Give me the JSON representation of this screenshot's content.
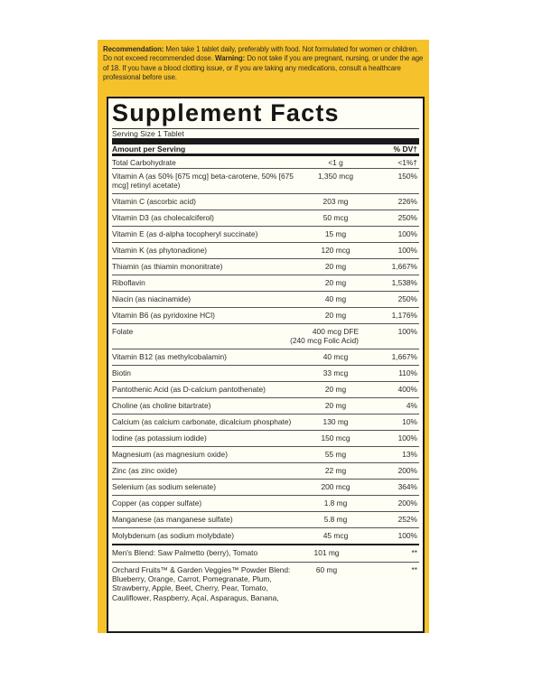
{
  "recommendation": {
    "label1": "Recommendation:",
    "text1": " Men take 1 tablet daily, preferably with food. Not formulated for women or children. Do not exceed recommended dose. ",
    "label2": "Warning:",
    "text2": " Do not take if you are pregnant, nursing, or under the age of 18. If you have a blood clotting issue, or if you are taking any medications, consult a healthcare professional before use."
  },
  "facts": {
    "title": "Supplement Facts",
    "serving_size": "Serving Size 1 Tablet",
    "header_amount": "Amount per Serving",
    "header_dv": "% DV†",
    "rows": [
      {
        "name": "Total Carbohydrate",
        "amount": "<1 g",
        "dv": "<1%†"
      },
      {
        "name": "Vitamin A (as 50% [675 mcg] beta-carotene, 50% [675 mcg] retinyl acetate)",
        "amount": "1,350 mcg",
        "dv": "150%"
      },
      {
        "name": "Vitamin C (ascorbic acid)",
        "amount": "203 mg",
        "dv": "226%"
      },
      {
        "name": "Vitamin D3 (as cholecalciferol)",
        "amount": "50 mcg",
        "dv": "250%"
      },
      {
        "name": "Vitamin E (as d-alpha tocopheryl succinate)",
        "amount": "15 mg",
        "dv": "100%"
      },
      {
        "name": "Vitamin K (as phytonadione)",
        "amount": "120 mcg",
        "dv": "100%"
      },
      {
        "name": "Thiamin (as thiamin mononitrate)",
        "amount": "20 mg",
        "dv": "1,667%"
      },
      {
        "name": "Riboflavin",
        "amount": "20 mg",
        "dv": "1,538%"
      },
      {
        "name": "Niacin (as niacinamide)",
        "amount": "40 mg",
        "dv": "250%"
      },
      {
        "name": "Vitamin B6 (as pyridoxine HCl)",
        "amount": "20 mg",
        "dv": "1,176%"
      },
      {
        "name": "Folate",
        "amount": "400 mcg DFE",
        "amount2": "(240 mcg Folic Acid)",
        "dv": "100%"
      },
      {
        "name": "Vitamin B12 (as methylcobalamin)",
        "amount": "40 mcg",
        "dv": "1,667%"
      },
      {
        "name": "Biotin",
        "amount": "33 mcg",
        "dv": "110%"
      },
      {
        "name": "Pantothenic Acid (as D-calcium pantothenate)",
        "amount": "20 mg",
        "dv": "400%"
      },
      {
        "name": "Choline (as choline bitartrate)",
        "amount": "20 mg",
        "dv": "4%"
      },
      {
        "name": "Calcium (as calcium carbonate, dicalcium phosphate)",
        "amount": "130 mg",
        "dv": "10%"
      },
      {
        "name": "Iodine (as potassium iodide)",
        "amount": "150 mcg",
        "dv": "100%"
      },
      {
        "name": "Magnesium (as magnesium oxide)",
        "amount": "55 mg",
        "dv": "13%"
      },
      {
        "name": "Zinc (as zinc oxide)",
        "amount": "22 mg",
        "dv": "200%"
      },
      {
        "name": "Selenium (as sodium selenate)",
        "amount": "200 mcg",
        "dv": "364%"
      },
      {
        "name": "Copper (as copper sulfate)",
        "amount": "1.8 mg",
        "dv": "200%"
      },
      {
        "name": "Manganese (as manganese sulfate)",
        "amount": "5.8 mg",
        "dv": "252%"
      },
      {
        "name": "Molybdenum (as sodium molybdate)",
        "amount": "45 mcg",
        "dv": "100%"
      }
    ],
    "blends": [
      {
        "name": "Men's Blend: Saw Palmetto (berry), Tomato",
        "amount": "101 mg",
        "dv": "**"
      },
      {
        "name": "Orchard Fruits™ & Garden Veggies™ Powder Blend: Blueberry, Orange, Carrot, Pomegranate, Plum, Strawberry, Apple, Beet, Cherry, Pear, Tomato, Cauliflower, Raspberry, Açaí, Asparagus, Banana,",
        "amount": "60 mg",
        "dv": "**"
      }
    ]
  },
  "colors": {
    "label_yellow": "#f6c22b",
    "panel": "#fffef4",
    "ink": "#1a1a1a"
  }
}
